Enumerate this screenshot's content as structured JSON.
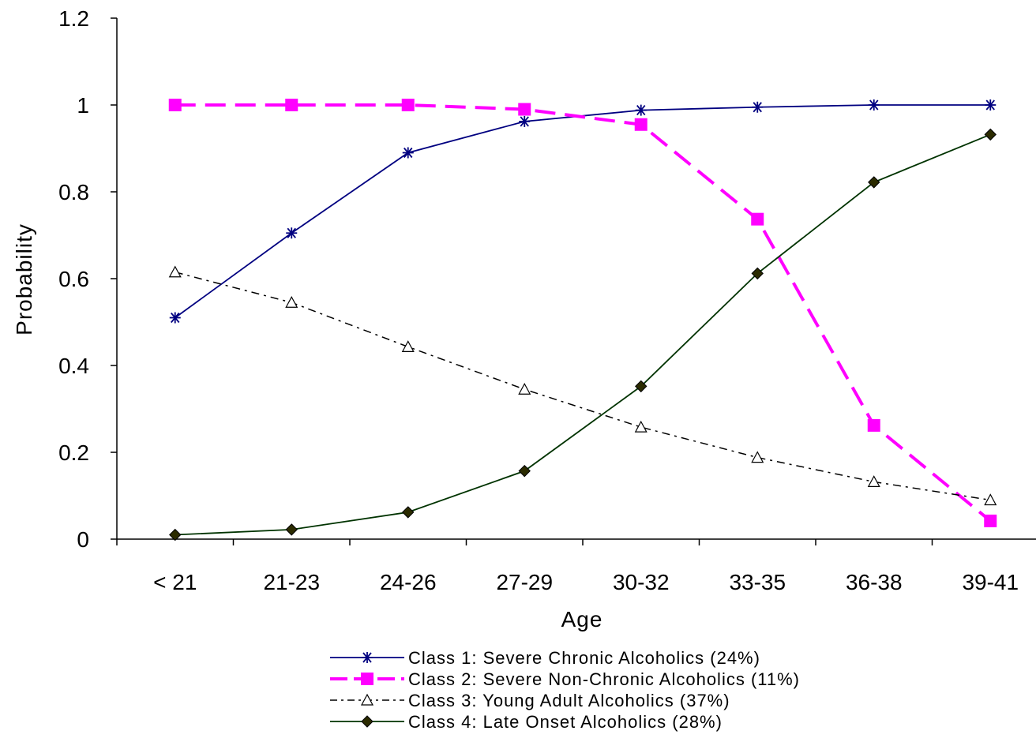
{
  "chart_data": {
    "type": "line",
    "title": "",
    "xlabel": "Age",
    "ylabel": "Probability",
    "categories": [
      "< 21",
      "21-23",
      "24-26",
      "27-29",
      "30-32",
      "33-35",
      "36-38",
      "39-41"
    ],
    "ylim": [
      0,
      1.2
    ],
    "yticks": [
      "0",
      "0.2",
      "0.4",
      "0.6",
      "0.8",
      "1",
      "1.2"
    ],
    "grid": false,
    "legend_position": "bottom",
    "series": [
      {
        "name": "Class 1: Severe Chronic Alcoholics (24%)",
        "values": [
          0.51,
          0.705,
          0.89,
          0.962,
          0.988,
          0.995,
          1.0,
          1.0
        ],
        "color": "#000080",
        "marker": "asterisk",
        "line": "solid"
      },
      {
        "name": "Class 2: Severe Non-Chronic Alcoholics (11%)",
        "values": [
          1.0,
          1.0,
          1.0,
          0.99,
          0.955,
          0.737,
          0.262,
          0.042
        ],
        "color": "#ff00ff",
        "marker": "square",
        "line": "dashed"
      },
      {
        "name": "Class 3: Young Adult Alcoholics (37%)",
        "values": [
          0.615,
          0.545,
          0.443,
          0.345,
          0.258,
          0.188,
          0.132,
          0.09
        ],
        "color": "#000000",
        "marker": "triangle",
        "line": "dashdot"
      },
      {
        "name": "Class 4: Late Onset Alcoholics (28%)",
        "values": [
          0.01,
          0.022,
          0.062,
          0.157,
          0.352,
          0.612,
          0.822,
          0.932
        ],
        "color": "#003300",
        "marker": "diamond",
        "line": "solid"
      }
    ]
  }
}
